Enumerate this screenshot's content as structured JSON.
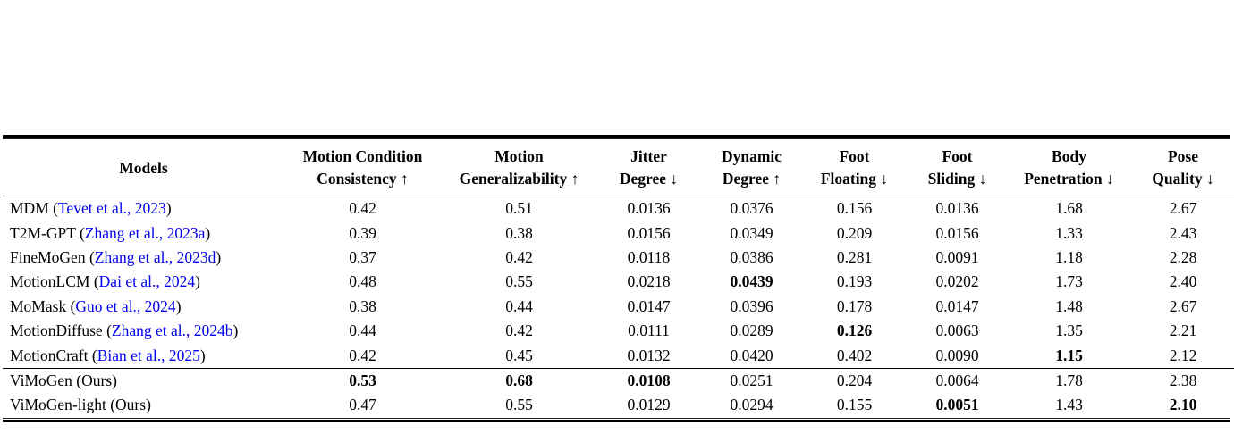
{
  "page": {
    "background": "#ffffff"
  },
  "table": {
    "font_color": "#000000",
    "citation_color": "#0000EE",
    "paren_open": " (",
    "paren_close": ")",
    "columns": [
      {
        "id": "models",
        "line1": "Models",
        "line2": ""
      },
      {
        "id": "motion-condition-consistency",
        "line1": "Motion Condition",
        "line2": "Consistency ↑"
      },
      {
        "id": "motion-generalizability",
        "line1": "Motion",
        "line2": "Generalizability ↑"
      },
      {
        "id": "jitter-degree",
        "line1": "Jitter",
        "line2": "Degree ↓"
      },
      {
        "id": "dynamic-degree",
        "line1": "Dynamic",
        "line2": "Degree ↑"
      },
      {
        "id": "foot-floating",
        "line1": "Foot",
        "line2": "Floating ↓"
      },
      {
        "id": "foot-sliding",
        "line1": "Foot",
        "line2": "Sliding ↓"
      },
      {
        "id": "body-penetration",
        "line1": "Body",
        "line2": "Penetration ↓"
      },
      {
        "id": "pose-quality",
        "line1": "Pose",
        "line2": "Quality ↓"
      }
    ],
    "groups": [
      {
        "name": "baselines",
        "rows": [
          {
            "name": "MDM",
            "cite": "Tevet et al., 2023",
            "cite_is_link": true,
            "values": [
              "0.42",
              "0.51",
              "0.0136",
              "0.0376",
              "0.156",
              "0.0136",
              "1.68",
              "2.67"
            ],
            "bold_indices": []
          },
          {
            "name": "T2M-GPT",
            "cite": "Zhang et al., 2023a",
            "cite_is_link": true,
            "values": [
              "0.39",
              "0.38",
              "0.0156",
              "0.0349",
              "0.209",
              "0.0156",
              "1.33",
              "2.43"
            ],
            "bold_indices": []
          },
          {
            "name": "FineMoGen",
            "cite": "Zhang et al., 2023d",
            "cite_is_link": true,
            "values": [
              "0.37",
              "0.42",
              "0.0118",
              "0.0386",
              "0.281",
              "0.0091",
              "1.18",
              "2.28"
            ],
            "bold_indices": []
          },
          {
            "name": "MotionLCM",
            "cite": "Dai et al., 2024",
            "cite_is_link": true,
            "values": [
              "0.48",
              "0.55",
              "0.0218",
              "0.0439",
              "0.193",
              "0.0202",
              "1.73",
              "2.40"
            ],
            "bold_indices": [
              3
            ]
          },
          {
            "name": "MoMask",
            "cite": "Guo et al., 2024",
            "cite_is_link": true,
            "values": [
              "0.38",
              "0.44",
              "0.0147",
              "0.0396",
              "0.178",
              "0.0147",
              "1.48",
              "2.67"
            ],
            "bold_indices": []
          },
          {
            "name": "MotionDiffuse",
            "cite": "Zhang et al., 2024b",
            "cite_is_link": true,
            "values": [
              "0.44",
              "0.42",
              "0.0111",
              "0.0289",
              "0.126",
              "0.0063",
              "1.35",
              "2.21"
            ],
            "bold_indices": [
              4
            ]
          },
          {
            "name": "MotionCraft",
            "cite": "Bian et al., 2025",
            "cite_is_link": true,
            "values": [
              "0.42",
              "0.45",
              "0.0132",
              "0.0420",
              "0.402",
              "0.0090",
              "1.15",
              "2.12"
            ],
            "bold_indices": [
              6
            ]
          }
        ]
      },
      {
        "name": "ours",
        "rows": [
          {
            "name": "ViMoGen",
            "cite": "Ours",
            "cite_is_link": false,
            "values": [
              "0.53",
              "0.68",
              "0.0108",
              "0.0251",
              "0.204",
              "0.0064",
              "1.78",
              "2.38"
            ],
            "bold_indices": [
              0,
              1,
              2
            ]
          },
          {
            "name": "ViMoGen-light",
            "cite": "Ours",
            "cite_is_link": false,
            "values": [
              "0.47",
              "0.55",
              "0.0129",
              "0.0294",
              "0.155",
              "0.0051",
              "1.43",
              "2.10"
            ],
            "bold_indices": [
              5,
              7
            ]
          }
        ]
      }
    ]
  }
}
